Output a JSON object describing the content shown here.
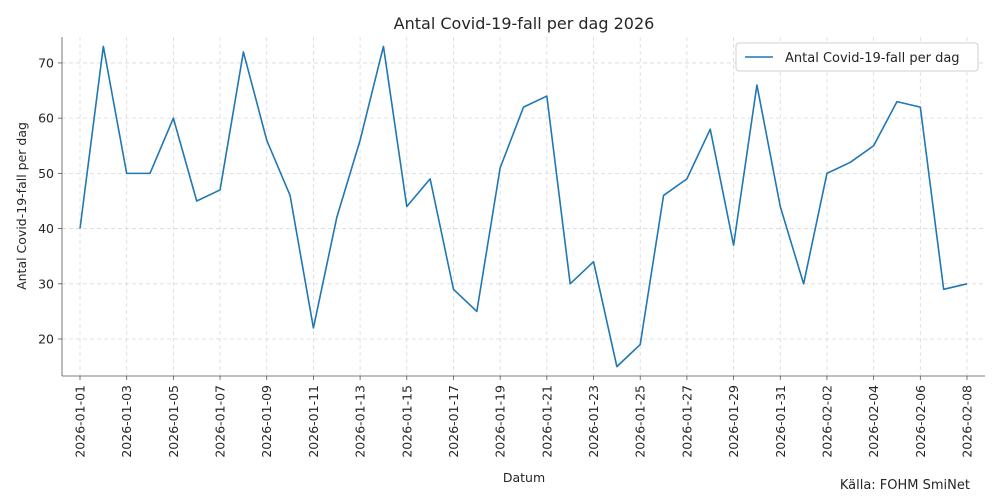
{
  "chart_data": {
    "type": "line",
    "title": "Antal Covid-19-fall per dag 2026",
    "xlabel": "Datum",
    "ylabel": "Antal Covid-19-fall per dag",
    "source": "Källa: FOHM SmiNet",
    "legend": {
      "placement": "top-right",
      "entries": [
        "Antal Covid-19-fall per dag"
      ]
    },
    "grid": true,
    "line_color": "#1f77b4",
    "ylim": [
      13.3,
      74.7
    ],
    "yticks": [
      20,
      30,
      40,
      50,
      60,
      70
    ],
    "xtick_labels": [
      "2026-01-01",
      "2026-01-03",
      "2026-01-05",
      "2026-01-07",
      "2026-01-09",
      "2026-01-11",
      "2026-01-13",
      "2026-01-15",
      "2026-01-17",
      "2026-01-19",
      "2026-01-21",
      "2026-01-23",
      "2026-01-25",
      "2026-01-27",
      "2026-01-29",
      "2026-01-31",
      "2026-02-02",
      "2026-02-04",
      "2026-02-06",
      "2026-02-08"
    ],
    "x": [
      "2026-01-01",
      "2026-01-02",
      "2026-01-03",
      "2026-01-04",
      "2026-01-05",
      "2026-01-06",
      "2026-01-07",
      "2026-01-08",
      "2026-01-09",
      "2026-01-10",
      "2026-01-11",
      "2026-01-12",
      "2026-01-13",
      "2026-01-14",
      "2026-01-15",
      "2026-01-16",
      "2026-01-17",
      "2026-01-18",
      "2026-01-19",
      "2026-01-20",
      "2026-01-21",
      "2026-01-22",
      "2026-01-23",
      "2026-01-24",
      "2026-01-25",
      "2026-01-26",
      "2026-01-27",
      "2026-01-28",
      "2026-01-29",
      "2026-01-30",
      "2026-01-31",
      "2026-02-01",
      "2026-02-02",
      "2026-02-03",
      "2026-02-04",
      "2026-02-05",
      "2026-02-06",
      "2026-02-07",
      "2026-02-08"
    ],
    "series": [
      {
        "name": "Antal Covid-19-fall per dag",
        "values": [
          40,
          73,
          50,
          50,
          60,
          45,
          47,
          72,
          56,
          46,
          22,
          42,
          56,
          73,
          44,
          49,
          29,
          25,
          51,
          62,
          64,
          30,
          34,
          15,
          19,
          46,
          49,
          58,
          37,
          66,
          44,
          30,
          50,
          52,
          55,
          63,
          62,
          29,
          30
        ]
      }
    ]
  }
}
